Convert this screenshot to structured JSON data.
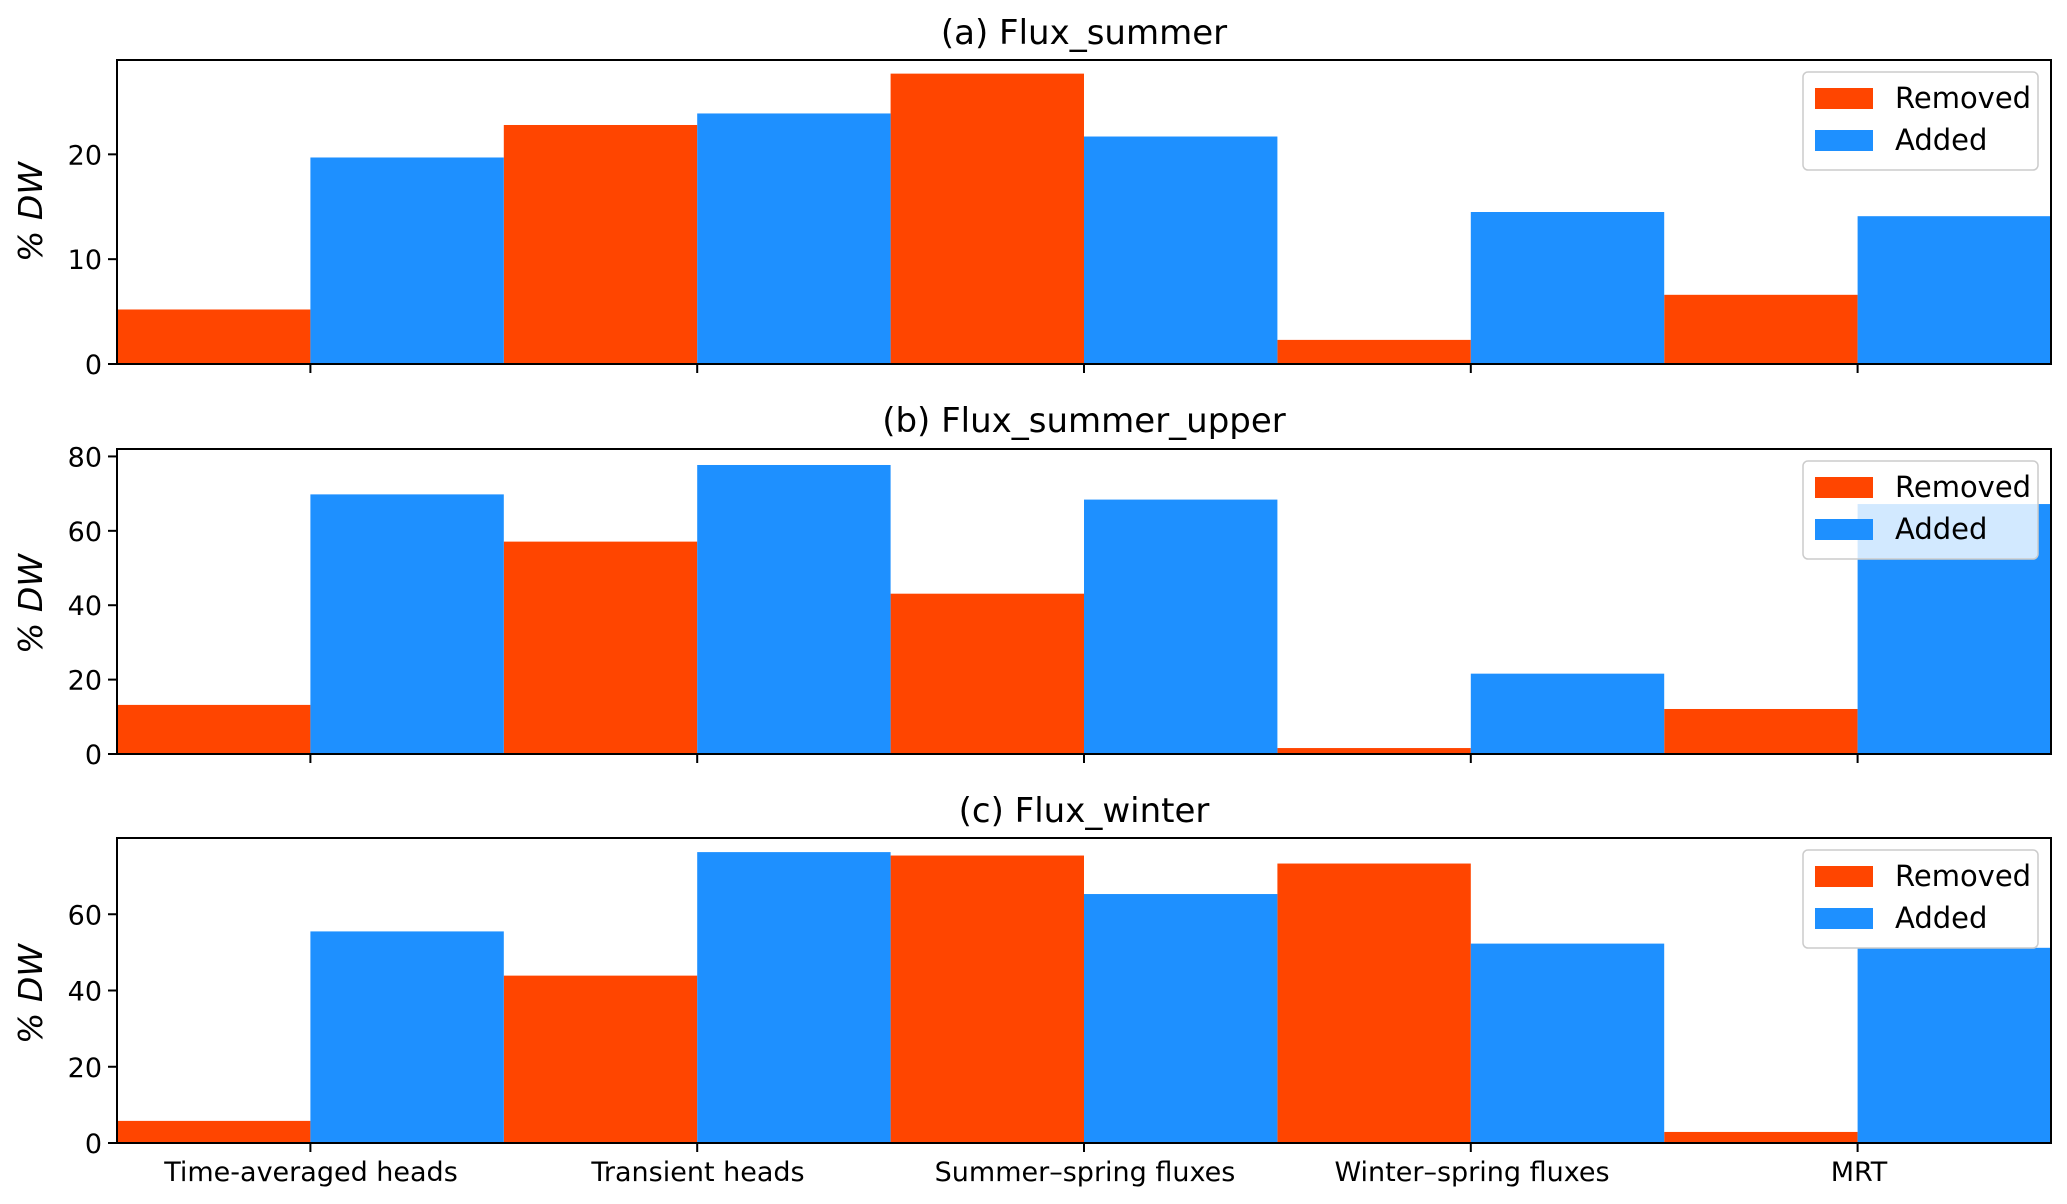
{
  "colors": {
    "removed": "#FF4500",
    "added": "#1E90FF"
  },
  "chart_data": [
    {
      "type": "bar",
      "title": "(a) Flux_summer",
      "ylabel": "% DW",
      "ylim": [
        0,
        29
      ],
      "yticks": [
        0,
        10,
        20
      ],
      "legend": "top-right",
      "categories": [
        "Time-averaged heads",
        "Transient heads",
        "Summer–spring fluxes",
        "Winter–spring fluxes",
        "MRT"
      ],
      "series": [
        {
          "name": "Removed",
          "values": [
            5.2,
            22.8,
            27.7,
            2.3,
            6.6
          ]
        },
        {
          "name": "Added",
          "values": [
            19.7,
            23.9,
            21.7,
            14.5,
            14.1
          ]
        }
      ]
    },
    {
      "type": "bar",
      "title": "(b) Flux_summer_upper",
      "ylabel": "% DW",
      "ylim": [
        0,
        82
      ],
      "yticks": [
        0,
        20,
        40,
        60,
        80
      ],
      "legend": "top-right",
      "categories": [
        "Time-averaged heads",
        "Transient heads",
        "Summer–spring fluxes",
        "Winter–spring fluxes",
        "MRT"
      ],
      "series": [
        {
          "name": "Removed",
          "values": [
            13.2,
            57.1,
            43.1,
            1.6,
            12.1
          ]
        },
        {
          "name": "Added",
          "values": [
            69.8,
            77.7,
            68.4,
            21.6,
            67.2
          ]
        }
      ]
    },
    {
      "type": "bar",
      "title": "(c) Flux_winter",
      "ylabel": "% DW",
      "ylim": [
        0,
        80
      ],
      "yticks": [
        0,
        20,
        40,
        60
      ],
      "legend": "top-right",
      "categories": [
        "Time-averaged heads",
        "Transient heads",
        "Summer–spring fluxes",
        "Winter–spring fluxes",
        "MRT"
      ],
      "series": [
        {
          "name": "Removed",
          "values": [
            5.8,
            43.9,
            75.4,
            73.3,
            2.9
          ]
        },
        {
          "name": "Added",
          "values": [
            55.5,
            76.3,
            65.3,
            52.3,
            51.2
          ]
        }
      ]
    }
  ]
}
